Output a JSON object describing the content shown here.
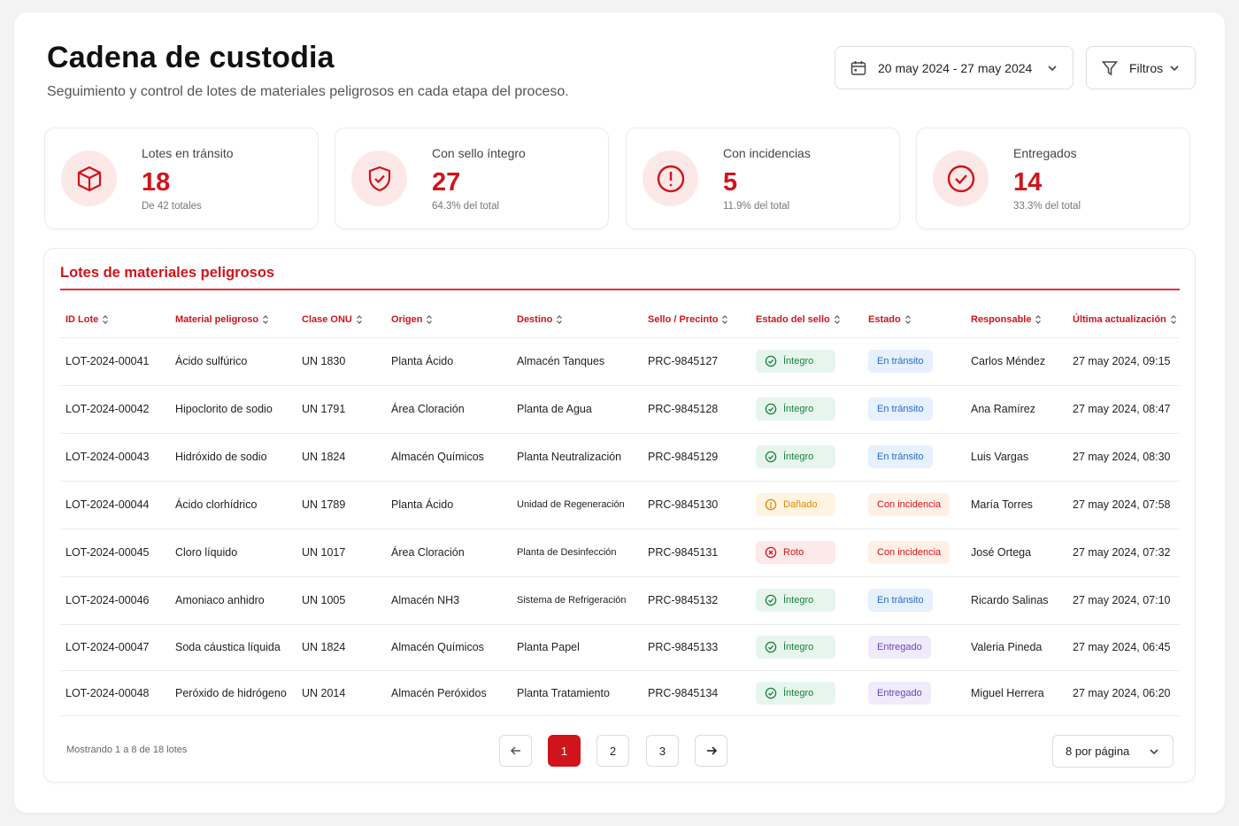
{
  "header": {
    "title": "Cadena de custodia",
    "subtitle": "Seguimiento y control de lotes de materiales peligrosos en cada etapa del proceso.",
    "date_range": "20 may 2024 - 27 may 2024",
    "filters_label": "Filtros"
  },
  "stats": [
    {
      "label": "Lotes en tránsito",
      "value": "18",
      "sub": "De 42 totales",
      "icon": "box-icon"
    },
    {
      "label": "Con sello íntegro",
      "value": "27",
      "sub": "64.3% del total",
      "icon": "shield-check-icon"
    },
    {
      "label": "Con incidencias",
      "value": "5",
      "sub": "11.9% del total",
      "icon": "alert-circle-icon"
    },
    {
      "label": "Entregados",
      "value": "14",
      "sub": "33.3% del total",
      "icon": "check-circle-icon"
    }
  ],
  "table": {
    "title": "Lotes de materiales peligrosos",
    "columns": [
      "ID Lote",
      "Material peligroso",
      "Clase ONU",
      "Origen",
      "Destino",
      "Sello / Precinto",
      "Estado del sello",
      "Estado",
      "Responsable",
      "Última actualización"
    ],
    "rows": [
      {
        "id": "LOT-2024-00041",
        "material": "Ácido sulfúrico",
        "onu": "UN 1830",
        "origin": "Planta Ácido",
        "dest": "Almacén Tanques",
        "seal": "PRC-9845127",
        "seal_state": "Íntegro",
        "seal_kind": "ok",
        "state": "En tránsito",
        "state_kind": "transit",
        "owner": "Carlos Méndez",
        "updated": "27 may 2024, 09:15"
      },
      {
        "id": "LOT-2024-00042",
        "material": "Hipoclorito de sodio",
        "onu": "UN 1791",
        "origin": "Área Cloración",
        "dest": "Planta de Agua",
        "seal": "PRC-9845128",
        "seal_state": "Íntegro",
        "seal_kind": "ok",
        "state": "En tránsito",
        "state_kind": "transit",
        "owner": "Ana Ramírez",
        "updated": "27 may 2024, 08:47"
      },
      {
        "id": "LOT-2024-00043",
        "material": "Hidróxido de sodio",
        "onu": "UN 1824",
        "origin": "Almacén Químicos",
        "dest": "Planta Neutralización",
        "seal": "PRC-9845129",
        "seal_state": "Íntegro",
        "seal_kind": "ok",
        "state": "En tránsito",
        "state_kind": "transit",
        "owner": "Luis Vargas",
        "updated": "27 may 2024, 08:30"
      },
      {
        "id": "LOT-2024-00044",
        "material": "Ácido clorhídrico",
        "onu": "UN 1789",
        "origin": "Planta Ácido",
        "dest": "Unidad de Regeneración",
        "seal": "PRC-9845130",
        "seal_state": "Dañado",
        "seal_kind": "warn",
        "state": "Con incidencia",
        "state_kind": "inc",
        "owner": "María Torres",
        "updated": "27 may 2024, 07:58"
      },
      {
        "id": "LOT-2024-00045",
        "material": "Cloro líquido",
        "onu": "UN 1017",
        "origin": "Área Cloración",
        "dest": "Planta de Desinfección",
        "seal": "PRC-9845131",
        "seal_state": "Roto",
        "seal_kind": "bad",
        "state": "Con incidencia",
        "state_kind": "inc",
        "owner": "José Ortega",
        "updated": "27 may 2024, 07:32"
      },
      {
        "id": "LOT-2024-00046",
        "material": "Amoniaco anhidro",
        "onu": "UN 1005",
        "origin": "Almacén NH3",
        "dest": "Sistema de Refrigeración",
        "seal": "PRC-9845132",
        "seal_state": "Íntegro",
        "seal_kind": "ok",
        "state": "En tránsito",
        "state_kind": "transit",
        "owner": "Ricardo Salinas",
        "updated": "27 may 2024, 07:10"
      },
      {
        "id": "LOT-2024-00047",
        "material": "Soda cáustica líquida",
        "onu": "UN 1824",
        "origin": "Almacén Químicos",
        "dest": "Planta Papel",
        "seal": "PRC-9845133",
        "seal_state": "Íntegro",
        "seal_kind": "ok",
        "state": "Entregado",
        "state_kind": "deliv",
        "owner": "Valeria Pineda",
        "updated": "27 may 2024, 06:45"
      },
      {
        "id": "LOT-2024-00048",
        "material": "Peróxido de hidrógeno",
        "onu": "UN 2014",
        "origin": "Almacén Peróxidos",
        "dest": "Planta Tratamiento",
        "seal": "PRC-9845134",
        "seal_state": "Íntegro",
        "seal_kind": "ok",
        "state": "Entregado",
        "state_kind": "deliv",
        "owner": "Miguel Herrera",
        "updated": "27 may 2024, 06:20"
      }
    ]
  },
  "pagination": {
    "summary": "Mostrando 1 a 8 de 18 lotes",
    "pages": [
      "1",
      "2",
      "3"
    ],
    "current": "1",
    "per_page": "8 por página"
  },
  "colors": {
    "accent": "#d0141b",
    "seal_ok": "#17803d",
    "seal_warn": "#e08700",
    "transit": "#2769c9",
    "delivered": "#6b45b8"
  }
}
